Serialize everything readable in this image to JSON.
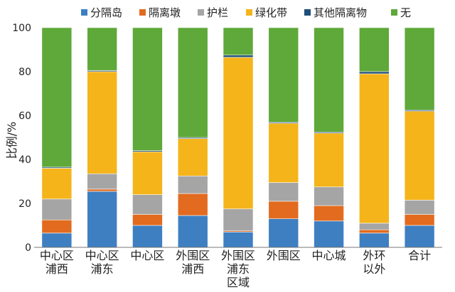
{
  "chart_data": {
    "type": "bar",
    "stacked": true,
    "title": "",
    "xlabel": "",
    "ylabel": "比例/%",
    "ylim": [
      0,
      100
    ],
    "yticks": [
      0,
      20,
      40,
      60,
      80,
      100
    ],
    "grid": false,
    "legend_position": "top",
    "categories": [
      [
        "中心区",
        "浦西"
      ],
      [
        "中心区",
        "浦东"
      ],
      [
        "中心区"
      ],
      [
        "外围区",
        "浦西"
      ],
      [
        "外围区",
        "浦东",
        "区域"
      ],
      [
        "外围区"
      ],
      [
        "中心城"
      ],
      [
        "外环",
        "以外"
      ],
      [
        "合计"
      ]
    ],
    "series": [
      {
        "name": "分隔岛",
        "color": "#3E7FC1",
        "values": [
          6.5,
          25.5,
          10,
          14.5,
          7,
          13,
          12,
          6.5,
          10
        ]
      },
      {
        "name": "隔离墩",
        "color": "#E26B1F",
        "values": [
          6,
          1,
          5,
          10,
          0.5,
          8,
          7,
          1.5,
          5
        ]
      },
      {
        "name": "护栏",
        "color": "#A5A5A5",
        "values": [
          9.5,
          7,
          9,
          8,
          10,
          8.5,
          8.5,
          3,
          6.5
        ]
      },
      {
        "name": "绿化带",
        "color": "#F4B41A",
        "values": [
          14,
          46.5,
          19.5,
          17,
          69,
          27,
          24.5,
          68,
          40.5
        ]
      },
      {
        "name": "其他隔离物",
        "color": "#1F4E79",
        "values": [
          0.5,
          0.5,
          0.5,
          0.5,
          1,
          0.5,
          0.5,
          1,
          0.5
        ]
      },
      {
        "name": "无",
        "color": "#5FA83A",
        "values": [
          63.5,
          19.5,
          56,
          50,
          12.5,
          43,
          47.5,
          20,
          37.5
        ]
      }
    ]
  }
}
